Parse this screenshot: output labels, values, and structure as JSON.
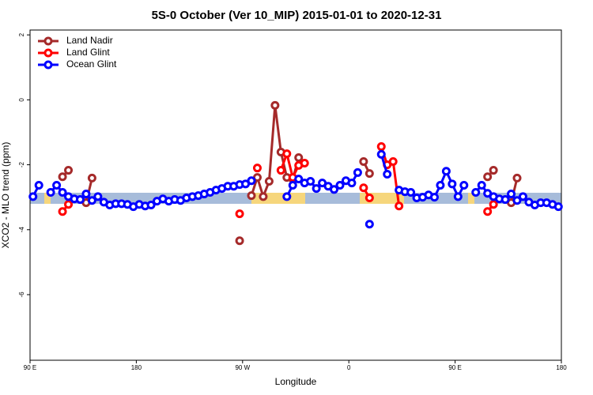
{
  "chart_data": {
    "type": "line",
    "title": "5S-0 October (Ver 10_MIP)   2015-01-01 to 2020-12-31",
    "x_label": "Longitude",
    "y_label": "XCO2 - MLO trend (ppm)",
    "xlim": [
      90,
      540
    ],
    "ylim": [
      -8.02,
      2.15
    ],
    "xticks": [
      {
        "value": 90,
        "label": "90 E"
      },
      180,
      {
        "value": 270,
        "label": "90 W"
      },
      {
        "value": 360,
        "label": "0"
      },
      {
        "value": 450,
        "label": "90 E"
      },
      {
        "value": 540,
        "label": "180"
      }
    ],
    "yticks": [
      2,
      0,
      -2,
      -4,
      -6
    ],
    "legend": "top-left",
    "x": [
      92.5,
      97.5,
      102.5,
      107.5,
      112.5,
      117.5,
      122.5,
      127.5,
      132.5,
      137.5,
      142.5,
      147.5,
      152.5,
      157.5,
      162.5,
      167.5,
      172.5,
      177.5,
      182.5,
      187.5,
      192.5,
      197.5,
      202.5,
      207.5,
      212.5,
      217.5,
      222.5,
      227.5,
      232.5,
      237.5,
      242.5,
      247.5,
      252.5,
      257.5,
      262.5,
      267.5,
      272.5,
      277.5,
      282.5,
      287.5,
      292.5,
      297.5,
      302.5,
      307.5,
      312.5,
      317.5,
      322.5,
      327.5,
      332.5,
      337.5,
      342.5,
      347.5,
      352.5,
      357.5,
      362.5,
      367.5,
      372.5,
      377.5,
      382.5,
      387.5,
      392.5,
      397.5,
      402.5,
      407.5,
      412.5,
      417.5,
      422.5,
      427.5,
      432.5,
      437.5,
      442.5,
      447.5,
      452.5,
      457.5,
      462.5,
      467.5,
      472.5,
      477.5,
      482.5,
      487.5,
      492.5,
      497.5,
      502.5,
      507.5,
      512.5,
      517.5,
      522.5,
      527.5,
      532.5,
      537.5
    ],
    "series": [
      {
        "name": "Land Nadir",
        "color": "#a52a2a",
        "values": [
          null,
          null,
          null,
          null,
          null,
          -2.37,
          -2.17,
          null,
          null,
          -3.17,
          -2.41,
          null,
          null,
          null,
          null,
          null,
          null,
          null,
          null,
          null,
          null,
          null,
          null,
          null,
          null,
          null,
          null,
          null,
          null,
          null,
          null,
          null,
          null,
          null,
          null,
          -4.34,
          null,
          -2.95,
          -2.39,
          -2.98,
          -2.51,
          -0.17,
          -1.61,
          -2.39,
          -2.44,
          -1.78,
          null,
          null,
          null,
          null,
          null,
          null,
          null,
          null,
          null,
          null,
          -1.9,
          -2.27,
          null,
          null,
          null,
          null,
          null,
          null,
          null,
          null,
          null,
          null,
          null,
          null,
          null,
          null,
          null,
          null,
          null,
          null,
          null,
          -2.37,
          -2.17,
          null,
          null,
          -3.17,
          -2.41,
          null,
          null,
          null,
          null,
          null,
          null,
          null
        ]
      },
      {
        "name": "Land Glint",
        "color": "#ff0000",
        "values": [
          null,
          null,
          null,
          null,
          null,
          -3.44,
          -3.22,
          null,
          null,
          null,
          null,
          null,
          null,
          null,
          null,
          null,
          null,
          null,
          null,
          null,
          null,
          null,
          null,
          null,
          null,
          null,
          null,
          null,
          null,
          null,
          null,
          null,
          null,
          null,
          null,
          -3.51,
          null,
          null,
          -2.1,
          null,
          null,
          null,
          -2.17,
          -1.66,
          -2.39,
          -2.02,
          -1.95,
          null,
          null,
          null,
          null,
          null,
          null,
          null,
          null,
          null,
          -2.71,
          -3.02,
          null,
          -1.44,
          -2.0,
          -1.9,
          -3.27,
          null,
          null,
          null,
          null,
          null,
          null,
          null,
          null,
          null,
          null,
          null,
          null,
          null,
          null,
          -3.44,
          -3.22,
          null,
          null,
          null,
          null,
          null,
          null,
          null,
          null,
          null,
          null,
          null
        ]
      },
      {
        "name": "Ocean Glint",
        "color": "#0000ff",
        "values": [
          -2.98,
          -2.63,
          null,
          -2.85,
          -2.63,
          -2.85,
          -2.98,
          -3.05,
          -3.07,
          -2.9,
          -3.1,
          -2.98,
          -3.15,
          -3.24,
          -3.2,
          -3.2,
          -3.22,
          -3.29,
          -3.22,
          -3.27,
          -3.24,
          -3.12,
          -3.05,
          -3.12,
          -3.07,
          -3.1,
          -3.02,
          -2.98,
          -2.95,
          -2.9,
          -2.85,
          -2.78,
          -2.73,
          -2.66,
          -2.66,
          -2.61,
          -2.59,
          -2.49,
          null,
          null,
          null,
          null,
          null,
          -2.98,
          -2.63,
          -2.44,
          -2.56,
          -2.51,
          -2.73,
          -2.56,
          -2.66,
          -2.76,
          -2.63,
          -2.49,
          -2.56,
          -2.24,
          null,
          -3.83,
          null,
          -1.68,
          -2.29,
          null,
          -2.78,
          -2.83,
          -2.85,
          -3.02,
          -3.0,
          -2.93,
          -3.0,
          -2.63,
          -2.2,
          -2.59,
          -2.98,
          -2.63,
          null,
          -2.85,
          -2.63,
          -2.88,
          -2.98,
          -3.05,
          -3.07,
          -2.9,
          -3.1,
          -2.98,
          -3.15,
          -3.24,
          -3.17,
          -3.17,
          -3.22,
          -3.29
        ]
      }
    ]
  }
}
